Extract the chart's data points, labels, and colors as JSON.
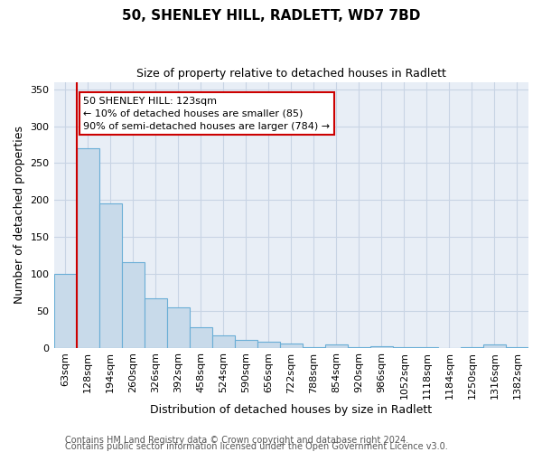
{
  "title": "50, SHENLEY HILL, RADLETT, WD7 7BD",
  "subtitle": "Size of property relative to detached houses in Radlett",
  "xlabel": "Distribution of detached houses by size in Radlett",
  "ylabel": "Number of detached properties",
  "bar_labels": [
    "63sqm",
    "128sqm",
    "194sqm",
    "260sqm",
    "326sqm",
    "392sqm",
    "458sqm",
    "524sqm",
    "590sqm",
    "656sqm",
    "722sqm",
    "788sqm",
    "854sqm",
    "920sqm",
    "986sqm",
    "1052sqm",
    "1118sqm",
    "1184sqm",
    "1250sqm",
    "1316sqm",
    "1382sqm"
  ],
  "bar_values": [
    100,
    270,
    195,
    116,
    67,
    55,
    28,
    17,
    11,
    8,
    5,
    1,
    4,
    1,
    2,
    1,
    1,
    0,
    1,
    4,
    1
  ],
  "bar_color": "#c8daea",
  "bar_edge_color": "#6aaed6",
  "vline_color": "#cc0000",
  "vline_x_index": 1,
  "annotation_text": "50 SHENLEY HILL: 123sqm\n← 10% of detached houses are smaller (85)\n90% of semi-detached houses are larger (784) →",
  "annotation_box_facecolor": "#ffffff",
  "annotation_box_edgecolor": "#cc0000",
  "ylim": [
    0,
    360
  ],
  "yticks": [
    0,
    50,
    100,
    150,
    200,
    250,
    300,
    350
  ],
  "footer1": "Contains HM Land Registry data © Crown copyright and database right 2024.",
  "footer2": "Contains public sector information licensed under the Open Government Licence v3.0.",
  "background_color": "#ffffff",
  "plot_bg_color": "#e8eef6",
  "grid_color": "#c8d4e4",
  "title_fontsize": 11,
  "subtitle_fontsize": 9,
  "axis_label_fontsize": 9,
  "tick_fontsize": 8,
  "annotation_fontsize": 8,
  "footer_fontsize": 7
}
